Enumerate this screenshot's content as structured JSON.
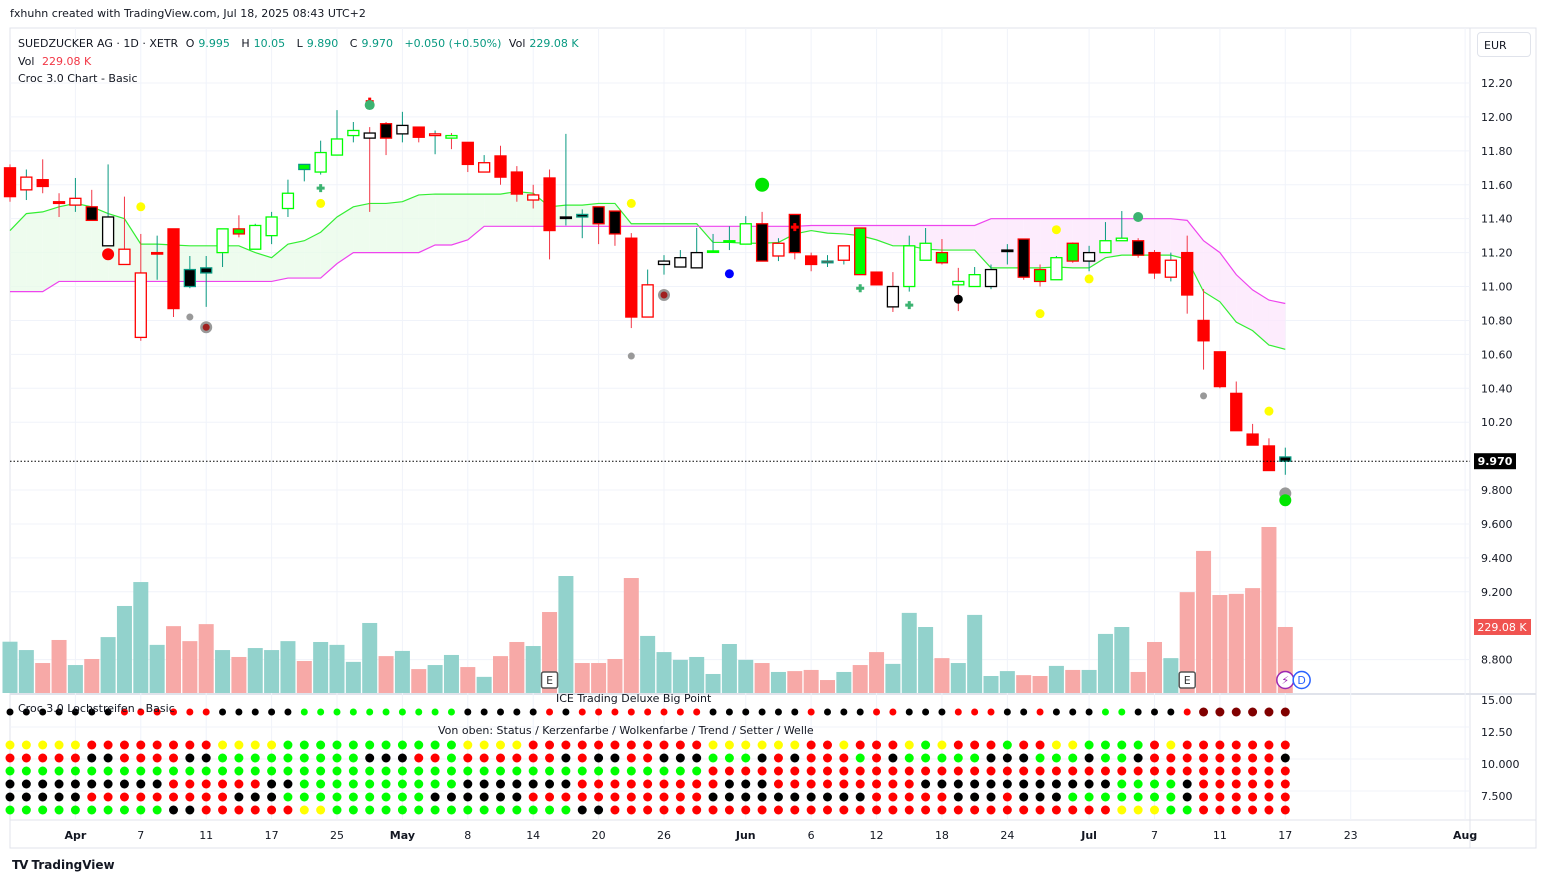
{
  "credit": "fxhuhn created with TradingView.com, Jul 18, 2025 08:43 UTC+2",
  "legend": {
    "symbol": "SUEDZUCKER AG · 1D · XETR",
    "o_label": "O",
    "o": "9.995",
    "h_label": "H",
    "h": "10.05",
    "l_label": "L",
    "l": "9.890",
    "c_label": "C",
    "c": "9.970",
    "change": "+0.050 (+0.50%)",
    "vol_label": "Vol",
    "vol": "229.08 K",
    "vol_line_label": "Vol",
    "vol_line_value": "229.08 K",
    "indicator": "Croc 3.0 Chart - Basic"
  },
  "currency": "EUR",
  "footer": {
    "logo": "TV",
    "brand": "TradingView"
  },
  "panes": {
    "lochstreifen": "Croc 3.0 Lochstreifen - Basic",
    "bigpoint": "ICE Trading Deluxe Big Point",
    "rows_caption": "Von oben: Status / Kerzenfarbe / Wolkenfarbe / Trend / Setter / Welle"
  },
  "chart_data": {
    "type": "candlestick",
    "colors": {
      "R": "#ff0000",
      "K": "#000000",
      "W": "#ffffff",
      "G": "#00ff00",
      "T": "#089981",
      "r": "#f23645",
      "Y": "#ffff00",
      "D": "#800000",
      "vol_up": "#92d2cc",
      "vol_down": "#f7a9a7",
      "cloud_fast": "#33ee33",
      "cloud_slow": "#ee44ee"
    },
    "price_axis": {
      "min": 8.7,
      "max": 12.3,
      "labels": [
        [
          "12.20",
          12.2
        ],
        [
          "12.00",
          12.0
        ],
        [
          "11.80",
          11.8
        ],
        [
          "11.60",
          11.6
        ],
        [
          "11.40",
          11.4
        ],
        [
          "11.20",
          11.2
        ],
        [
          "11.00",
          11.0
        ],
        [
          "10.80",
          10.8
        ],
        [
          "10.60",
          10.6
        ],
        [
          "10.40",
          10.4
        ],
        [
          "10.20",
          10.2
        ],
        [
          "9.800",
          9.8
        ],
        [
          "9.600",
          9.6
        ],
        [
          "9.400",
          9.4
        ],
        [
          "9.200",
          9.2
        ],
        [
          "8.800",
          8.8
        ]
      ]
    },
    "last_price": {
      "label": "9.970",
      "value": 9.97
    },
    "last_volume": {
      "label": "229.08 K"
    },
    "lower_axis_labels": [
      "15.00",
      "12.50",
      "10.000",
      "7.500"
    ],
    "time_labels": [
      [
        "Apr",
        4,
        true
      ],
      [
        "7",
        8,
        false
      ],
      [
        "11",
        12,
        false
      ],
      [
        "17",
        16,
        false
      ],
      [
        "25",
        20,
        false
      ],
      [
        "May",
        24,
        true
      ],
      [
        "8",
        28,
        false
      ],
      [
        "14",
        32,
        false
      ],
      [
        "20",
        36,
        false
      ],
      [
        "26",
        40,
        false
      ],
      [
        "Jun",
        45,
        true
      ],
      [
        "6",
        49,
        false
      ],
      [
        "12",
        53,
        false
      ],
      [
        "18",
        57,
        false
      ],
      [
        "24",
        61,
        false
      ],
      [
        "Jul",
        66,
        true
      ],
      [
        "7",
        70,
        false
      ],
      [
        "11",
        74,
        false
      ],
      [
        "17",
        78,
        false
      ],
      [
        "23",
        82,
        false
      ],
      [
        "Aug",
        89,
        true
      ]
    ],
    "candles_format": "open, high, low, close, fill, border, wick",
    "candles": [
      [
        11.7,
        11.72,
        11.5,
        11.53,
        "R",
        "R",
        "r"
      ],
      [
        11.57,
        11.69,
        11.51,
        11.645,
        "W",
        "R",
        "T"
      ],
      [
        11.63,
        11.75,
        11.55,
        11.59,
        "R",
        "R",
        "r"
      ],
      [
        11.5,
        11.55,
        11.41,
        11.49,
        "R",
        "R",
        "r"
      ],
      [
        11.48,
        11.64,
        11.44,
        11.52,
        "W",
        "R",
        "T"
      ],
      [
        11.47,
        11.57,
        11.39,
        11.39,
        "K",
        "R",
        "r"
      ],
      [
        11.24,
        11.72,
        11.24,
        11.41,
        "W",
        "K",
        "T"
      ],
      [
        11.13,
        11.53,
        11.13,
        11.22,
        "W",
        "R",
        "r"
      ],
      [
        10.7,
        11.31,
        10.68,
        11.08,
        "W",
        "R",
        "r"
      ],
      [
        11.2,
        11.3,
        11.04,
        11.2,
        "R",
        "R",
        "T"
      ],
      [
        11.34,
        11.34,
        10.82,
        10.87,
        "R",
        "R",
        "r"
      ],
      [
        11.1,
        11.18,
        10.99,
        11.0,
        "K",
        "T",
        "T"
      ],
      [
        11.11,
        11.18,
        10.88,
        11.08,
        "K",
        "T",
        "T"
      ],
      [
        11.2,
        11.34,
        11.115,
        11.34,
        "W",
        "G",
        "T"
      ],
      [
        11.34,
        11.42,
        11.29,
        11.31,
        "G",
        "R",
        "r"
      ],
      [
        11.22,
        11.37,
        11.22,
        11.36,
        "W",
        "G",
        "T"
      ],
      [
        11.3,
        11.44,
        11.25,
        11.41,
        "W",
        "G",
        "T"
      ],
      [
        11.46,
        11.63,
        11.41,
        11.55,
        "W",
        "G",
        "T"
      ],
      [
        11.72,
        11.72,
        11.62,
        11.69,
        "G",
        "T",
        "T"
      ],
      [
        11.675,
        11.86,
        11.66,
        11.79,
        "W",
        "G",
        "T"
      ],
      [
        11.775,
        12.04,
        11.775,
        11.87,
        "W",
        "G",
        "T"
      ],
      [
        11.89,
        11.97,
        11.85,
        11.92,
        "W",
        "G",
        "T"
      ],
      [
        11.875,
        11.94,
        11.44,
        11.905,
        "W",
        "K",
        "r"
      ],
      [
        11.96,
        11.97,
        11.775,
        11.875,
        "K",
        "R",
        "r"
      ],
      [
        11.9,
        12.03,
        11.85,
        11.95,
        "W",
        "K",
        "T"
      ],
      [
        11.94,
        11.94,
        11.85,
        11.88,
        "R",
        "R",
        "r"
      ],
      [
        11.89,
        11.92,
        11.78,
        11.9,
        "W",
        "R",
        "T"
      ],
      [
        11.875,
        11.905,
        11.81,
        11.89,
        "W",
        "G",
        "r"
      ],
      [
        11.85,
        11.85,
        11.675,
        11.72,
        "R",
        "R",
        "r"
      ],
      [
        11.675,
        11.775,
        11.675,
        11.73,
        "W",
        "R",
        "T"
      ],
      [
        11.77,
        11.83,
        11.6,
        11.645,
        "R",
        "R",
        "r"
      ],
      [
        11.675,
        11.71,
        11.5,
        11.545,
        "R",
        "R",
        "r"
      ],
      [
        11.51,
        11.6,
        11.46,
        11.54,
        "W",
        "R",
        "r"
      ],
      [
        11.64,
        11.69,
        11.16,
        11.33,
        "R",
        "R",
        "r"
      ],
      [
        11.41,
        11.9,
        11.36,
        11.41,
        "K",
        "K",
        "T"
      ],
      [
        11.425,
        11.455,
        11.285,
        11.41,
        "K",
        "T",
        "T"
      ],
      [
        11.47,
        11.47,
        11.25,
        11.37,
        "K",
        "R",
        "r"
      ],
      [
        11.445,
        11.445,
        11.24,
        11.31,
        "K",
        "R",
        "r"
      ],
      [
        11.285,
        11.315,
        10.755,
        10.82,
        "R",
        "R",
        "r"
      ],
      [
        10.82,
        11.1,
        10.82,
        11.01,
        "W",
        "R",
        "T"
      ],
      [
        11.13,
        11.185,
        11.07,
        11.15,
        "W",
        "K",
        "T"
      ],
      [
        11.115,
        11.215,
        11.115,
        11.17,
        "W",
        "K",
        "T"
      ],
      [
        11.11,
        11.345,
        11.11,
        11.2,
        "W",
        "K",
        "T"
      ],
      [
        11.205,
        11.31,
        11.205,
        11.21,
        "G",
        "G",
        "T"
      ],
      [
        11.27,
        11.355,
        11.215,
        11.27,
        "G",
        "G",
        "T"
      ],
      [
        11.25,
        11.415,
        11.25,
        11.37,
        "W",
        "G",
        "T"
      ],
      [
        11.37,
        11.44,
        11.15,
        11.15,
        "K",
        "R",
        "r"
      ],
      [
        11.18,
        11.285,
        11.15,
        11.255,
        "W",
        "R",
        "T"
      ],
      [
        11.425,
        11.425,
        11.16,
        11.2,
        "K",
        "R",
        "r"
      ],
      [
        11.18,
        11.2,
        11.09,
        11.13,
        "R",
        "R",
        "r"
      ],
      [
        11.15,
        11.185,
        11.115,
        11.14,
        "R",
        "T",
        "T"
      ],
      [
        11.155,
        11.24,
        11.13,
        11.24,
        "W",
        "R",
        "T"
      ],
      [
        11.345,
        11.345,
        11.07,
        11.07,
        "G",
        "R",
        "r"
      ],
      [
        11.085,
        11.085,
        11.01,
        11.01,
        "R",
        "R",
        "r"
      ],
      [
        10.88,
        11.085,
        10.85,
        11.0,
        "W",
        "K",
        "r"
      ],
      [
        11.0,
        11.3,
        10.97,
        11.24,
        "W",
        "G",
        "T"
      ],
      [
        11.155,
        11.345,
        11.155,
        11.255,
        "W",
        "G",
        "T"
      ],
      [
        11.2,
        11.28,
        11.13,
        11.14,
        "G",
        "R",
        "r"
      ],
      [
        11.01,
        11.11,
        10.855,
        11.03,
        "W",
        "G",
        "r"
      ],
      [
        11.0,
        11.115,
        11.0,
        11.07,
        "W",
        "G",
        "T"
      ],
      [
        11.0,
        11.13,
        10.985,
        11.1,
        "W",
        "K",
        "T"
      ],
      [
        11.215,
        11.25,
        11.13,
        11.215,
        "K",
        "K",
        "T"
      ],
      [
        11.28,
        11.28,
        11.04,
        11.055,
        "K",
        "R",
        "r"
      ],
      [
        11.1,
        11.13,
        11.0,
        11.03,
        "G",
        "R",
        "r"
      ],
      [
        11.04,
        11.18,
        11.04,
        11.17,
        "W",
        "G",
        "T"
      ],
      [
        11.255,
        11.26,
        11.14,
        11.15,
        "G",
        "R",
        "r"
      ],
      [
        11.15,
        11.24,
        11.09,
        11.2,
        "W",
        "K",
        "T"
      ],
      [
        11.2,
        11.38,
        11.2,
        11.27,
        "W",
        "G",
        "T"
      ],
      [
        11.27,
        11.445,
        11.27,
        11.285,
        "W",
        "G",
        "T"
      ],
      [
        11.27,
        11.285,
        11.17,
        11.185,
        "K",
        "R",
        "r"
      ],
      [
        11.2,
        11.215,
        11.045,
        11.08,
        "R",
        "R",
        "r"
      ],
      [
        11.055,
        11.2,
        11.03,
        11.155,
        "W",
        "R",
        "T"
      ],
      [
        11.2,
        11.3,
        10.84,
        10.95,
        "R",
        "R",
        "r"
      ],
      [
        10.8,
        10.985,
        10.51,
        10.68,
        "R",
        "R",
        "r"
      ],
      [
        10.615,
        10.615,
        10.4,
        10.41,
        "R",
        "R",
        "r"
      ],
      [
        10.37,
        10.44,
        10.15,
        10.15,
        "R",
        "R",
        "r"
      ],
      [
        10.13,
        10.19,
        10.065,
        10.065,
        "R",
        "R",
        "r"
      ],
      [
        10.06,
        10.105,
        9.915,
        9.915,
        "R",
        "R",
        "r"
      ],
      [
        9.995,
        10.05,
        9.89,
        9.97,
        "K",
        "T",
        "T"
      ]
    ],
    "volume_k": [
      178,
      149,
      104,
      184,
      97,
      118,
      194,
      302,
      385,
      167,
      232,
      180,
      239,
      149,
      125,
      156,
      149,
      180,
      111,
      177,
      167,
      108,
      243,
      128,
      146,
      83,
      97,
      132,
      90,
      56,
      128,
      177,
      163,
      281,
      406,
      104,
      104,
      118,
      399,
      198,
      142,
      115,
      125,
      66,
      170,
      115,
      104,
      73,
      76,
      80,
      45,
      73,
      97,
      142,
      101,
      278,
      229,
      121,
      104,
      271,
      59,
      76,
      62,
      59,
      94,
      80,
      80,
      205,
      229,
      73,
      177,
      121,
      350,
      493,
      340,
      344,
      364,
      576,
      229.08
    ],
    "volume_up": "TTRRTRTTTTRRRTRTTTRTTTTRTRTTRTRRTRTRRRRTTTTTTTRTRRRTRRTTTRTTTTRRTRTTTRRTRRRRRRR",
    "cloud_fast": [
      11.33,
      11.43,
      11.44,
      11.47,
      11.49,
      11.47,
      11.43,
      11.4,
      11.25,
      11.25,
      11.245,
      11.24,
      11.24,
      11.24,
      11.24,
      11.2,
      11.17,
      11.25,
      11.27,
      11.32,
      11.41,
      11.47,
      11.49,
      11.49,
      11.5,
      11.54,
      11.545,
      11.545,
      11.545,
      11.545,
      11.545,
      11.56,
      11.55,
      11.47,
      11.48,
      11.48,
      11.49,
      11.49,
      11.37,
      11.37,
      11.37,
      11.37,
      11.37,
      11.26,
      11.26,
      11.255,
      11.255,
      11.26,
      11.31,
      11.33,
      11.315,
      11.31,
      11.3,
      11.275,
      11.24,
      11.24,
      11.22,
      11.215,
      11.215,
      11.215,
      11.11,
      11.11,
      11.11,
      11.11,
      11.115,
      11.11,
      11.11,
      11.17,
      11.185,
      11.185,
      11.185,
      11.185,
      11.16,
      10.97,
      10.91,
      10.79,
      10.74,
      10.655,
      10.63
    ],
    "cloud_slow": [
      10.97,
      10.97,
      10.97,
      11.03,
      11.03,
      11.03,
      11.03,
      11.03,
      11.03,
      11.03,
      11.03,
      11.03,
      11.03,
      11.03,
      11.03,
      11.03,
      11.03,
      11.05,
      11.05,
      11.05,
      11.135,
      11.2,
      11.2,
      11.2,
      11.2,
      11.2,
      11.245,
      11.245,
      11.275,
      11.355,
      11.355,
      11.355,
      11.355,
      11.355,
      11.355,
      11.355,
      11.355,
      11.355,
      11.355,
      11.355,
      11.355,
      11.355,
      11.355,
      11.355,
      11.355,
      11.355,
      11.355,
      11.355,
      11.355,
      11.36,
      11.36,
      11.36,
      11.36,
      11.36,
      11.36,
      11.36,
      11.36,
      11.36,
      11.36,
      11.36,
      11.4,
      11.4,
      11.4,
      11.4,
      11.4,
      11.4,
      11.4,
      11.4,
      11.4,
      11.4,
      11.4,
      11.4,
      11.39,
      11.27,
      11.2,
      11.07,
      10.98,
      10.92,
      10.9
    ],
    "markers_format": "bar index, price, kind",
    "markers": [
      [
        6,
        11.19,
        "red-dot"
      ],
      [
        8,
        11.47,
        "yellow-dot"
      ],
      [
        11,
        10.82,
        "grey-small"
      ],
      [
        12,
        10.76,
        "grey-ring"
      ],
      [
        19,
        11.58,
        "green-plus"
      ],
      [
        19,
        11.49,
        "yellow-dot"
      ],
      [
        22,
        12.09,
        "red-plus"
      ],
      [
        22,
        12.07,
        "teal-dot"
      ],
      [
        38,
        11.49,
        "yellow-dot"
      ],
      [
        38,
        10.59,
        "grey-small"
      ],
      [
        40,
        10.95,
        "grey-ring"
      ],
      [
        44,
        11.075,
        "blue-dot"
      ],
      [
        46,
        11.6,
        "green-big"
      ],
      [
        48,
        11.35,
        "red-plus"
      ],
      [
        52,
        10.99,
        "green-plus"
      ],
      [
        55,
        10.89,
        "green-plus"
      ],
      [
        58,
        10.925,
        "black-dot"
      ],
      [
        63,
        10.84,
        "yellow-dot"
      ],
      [
        64,
        11.335,
        "yellow-dot"
      ],
      [
        66,
        11.045,
        "yellow-dot"
      ],
      [
        69,
        11.41,
        "teal-dot"
      ],
      [
        73,
        10.355,
        "grey-small"
      ],
      [
        77,
        10.265,
        "yellow-dot"
      ],
      [
        78,
        9.78,
        "grey-big"
      ],
      [
        78,
        9.74,
        "green-dot"
      ]
    ],
    "events": [
      {
        "bar": 33,
        "label": "E"
      },
      {
        "bar": 72,
        "label": "E"
      },
      {
        "bar": 78,
        "label": "⚡",
        "kind": "lightning"
      },
      {
        "bar": 79,
        "label": "D",
        "kind": "dividend"
      }
    ],
    "dot_rows": [
      "KKKKKKKRRRRRRKKKKKGGGGGGGGGGKKKKKRKRRRRRRRRKKKKKKRKKKRRKKKRRRKKRKKKGGKKKRDDDDDD",
      "YYYYYRRRRRRRRYYYYGGGGGGGGGGGYYYYRRRRRRRRRRRYYYYYYRRYRRRYGYRRRGRRYYGGGGRYRRRRRRR",
      "RRRRRKKRRRRKKGGGGGGGGGKKKRRGRRRRRRKRKKRRKKKGGGKRKRRRGRKGGGGGKKKGGGKGGKRRRRRRRRK",
      "GGGGGGGGGGGGGGGGGGGGGGGGGGGGGGGGGGGGGGGGGGGRRRRRRRRRRRRRRRRRRRRRRRRRRRRRRRRRRRR",
      "KKKKKKKKKKRRRRRRKKGGGGGGGGGGKKKKKKKRRRRRRRRRKKKRRRRRRRRRKKKKKKKKKKKKGGGGKRRRRRR",
      "KKKKKRRRRRRRRRKKKGGGGGGGGGKKKKKKRRRRRRRRRRRKKKKKKKKKKRRRRRKKKRKKKGGGGGGGKRRRRRR",
      "GGGGGGGGGGKKRRRRRRYYGGGGGGGGGGGGGGGKKRRRRRRRRRRRRRRRRRRRRRRRRRRRRRRRYYYGGRRRRRR"
    ]
  }
}
